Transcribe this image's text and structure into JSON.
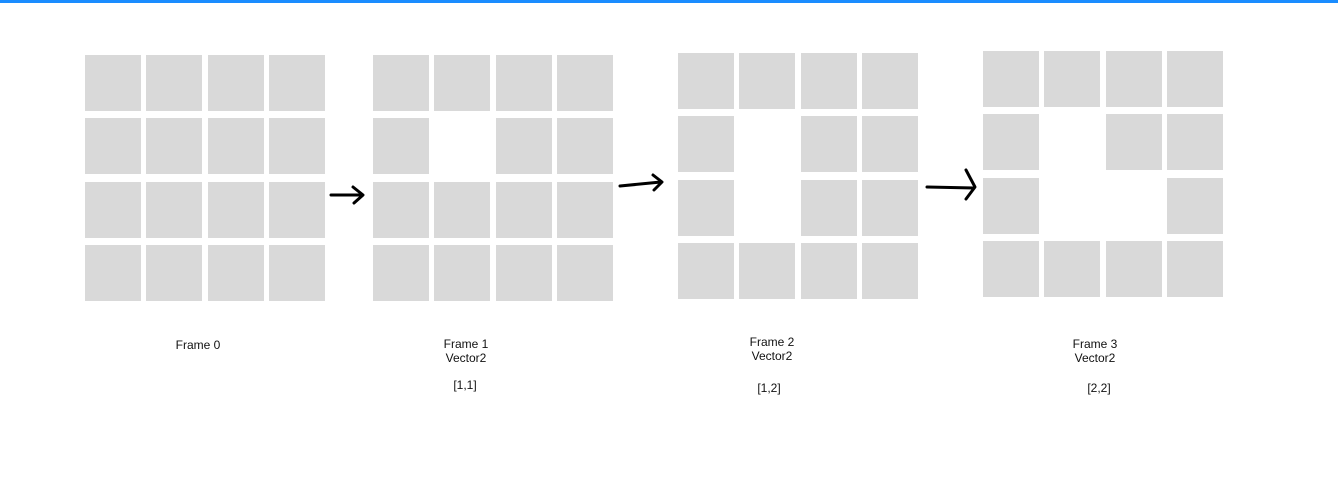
{
  "colors": {
    "accent": "#1a8cff",
    "cell": "#d9d9d9",
    "arrow": "#000000"
  },
  "frames": [
    {
      "title": "Frame 0",
      "subtitle": "",
      "coord": "",
      "rows": 4,
      "cols": 4,
      "empty_cells": []
    },
    {
      "title": "Frame 1",
      "subtitle": "Vector2",
      "coord": "[1,1]",
      "rows": 4,
      "cols": 4,
      "empty_cells": [
        [
          1,
          1
        ]
      ]
    },
    {
      "title": "Frame 2",
      "subtitle": "Vector2",
      "coord": "[1,2]",
      "rows": 4,
      "cols": 4,
      "empty_cells": [
        [
          1,
          1
        ],
        [
          2,
          1
        ]
      ]
    },
    {
      "title": "Frame 3",
      "subtitle": "Vector2",
      "coord": "[2,2]",
      "rows": 4,
      "cols": 4,
      "empty_cells": [
        [
          1,
          1
        ],
        [
          2,
          1
        ],
        [
          2,
          2
        ]
      ]
    }
  ]
}
